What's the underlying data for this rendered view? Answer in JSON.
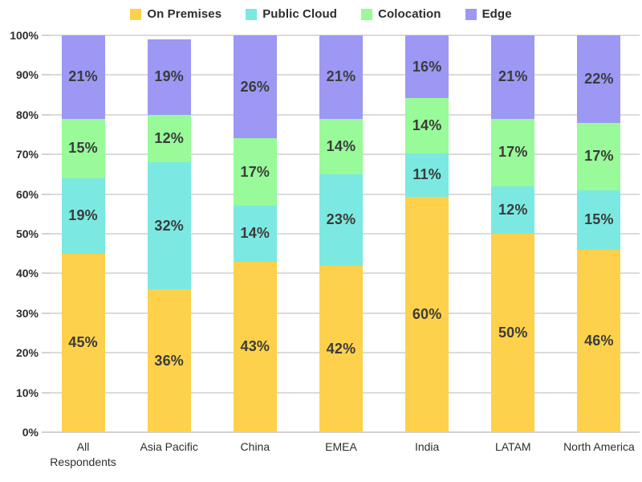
{
  "chart_data": {
    "type": "bar",
    "stacked": true,
    "orientation": "vertical",
    "legend_position": "top",
    "grid": true,
    "ylim": [
      0,
      100
    ],
    "y_ticks": [
      "0%",
      "10%",
      "20%",
      "30%",
      "40%",
      "50%",
      "60%",
      "70%",
      "80%",
      "90%",
      "100%"
    ],
    "categories": [
      "All Respondents",
      "Asia Pacific",
      "China",
      "EMEA",
      "India",
      "LATAM",
      "North America"
    ],
    "series": [
      {
        "name": "On Premises",
        "color": "#FDD14B",
        "values": [
          45,
          36,
          43,
          42,
          60,
          50,
          46
        ],
        "labels": [
          "45%",
          "36%",
          "43%",
          "42%",
          "60%",
          "50%",
          "46%"
        ]
      },
      {
        "name": "Public Cloud",
        "color": "#7BE9E1",
        "values": [
          19,
          32,
          14,
          23,
          11,
          12,
          15
        ],
        "labels": [
          "19%",
          "32%",
          "14%",
          "23%",
          "11%",
          "12%",
          "15%"
        ]
      },
      {
        "name": "Colocation",
        "color": "#98FA98",
        "values": [
          15,
          12,
          17,
          14,
          14,
          17,
          17
        ],
        "labels": [
          "15%",
          "12%",
          "17%",
          "14%",
          "14%",
          "17%",
          "17%"
        ]
      },
      {
        "name": "Edge",
        "color": "#9C98F4",
        "values": [
          21,
          19,
          26,
          21,
          16,
          21,
          22
        ],
        "labels": [
          "21%",
          "19%",
          "26%",
          "21%",
          "16%",
          "21%",
          "22%"
        ]
      }
    ],
    "colors": {
      "gridline": "#dbdbdb",
      "axis_line": "#d2d2d2",
      "tick_text": "#2e2e2e",
      "bar_label_text": "#3b3b3b"
    }
  }
}
